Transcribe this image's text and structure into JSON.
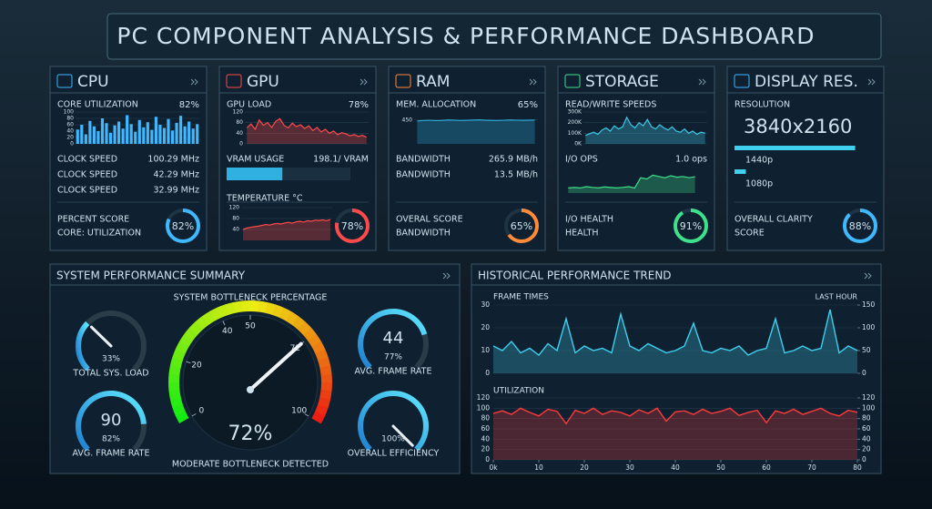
{
  "header": {
    "title": "PC COMPONENT ANALYSIS & PERFORMANCE DASHBOARD"
  },
  "cards": [
    {
      "title": "CPU",
      "label": "CORE UTILIZATION",
      "label_value": "82%",
      "value_color": "#5fe08a",
      "chart": {
        "kind": "bar",
        "color": "#3fb8ff",
        "ylim": [
          0,
          100
        ],
        "yticks": [
          0,
          20,
          40,
          60,
          80,
          100
        ],
        "values": [
          45,
          60,
          30,
          72,
          55,
          40,
          80,
          65,
          35,
          58,
          70,
          48,
          90,
          62,
          38,
          75,
          52,
          68,
          44,
          85,
          60,
          50,
          78,
          42,
          66,
          88,
          55,
          70,
          48,
          62
        ]
      },
      "rows": [
        [
          "CLOCK SPEED",
          "100.29 MHz"
        ],
        [
          "CLOCK SPEED",
          "42.29 MHz"
        ],
        [
          "CLOCK SPEED",
          "32.99 MHz"
        ]
      ],
      "score_lines": [
        "PERCENT SCORE",
        "CORE: UTILIZATION"
      ],
      "score": 82,
      "score_label": "82%",
      "ring_color": "#3fb8ff"
    },
    {
      "title": "GPU",
      "label": "GPU LOAD",
      "label_value": "78%",
      "value_color": "#ff5a5a",
      "chart": {
        "kind": "area",
        "color": "#ff4a4a",
        "ylim": [
          0,
          120
        ],
        "yticks": [
          0,
          40,
          80,
          120
        ],
        "values": [
          60,
          75,
          55,
          90,
          70,
          80,
          62,
          85,
          95,
          70,
          60,
          78,
          65,
          72,
          58,
          68,
          50,
          62,
          45,
          55,
          40,
          48,
          35,
          42,
          38,
          30,
          35,
          28,
          32,
          25
        ]
      },
      "progress": {
        "label": "VRAM USAGE",
        "value_text": "198.1/ VRAM",
        "fill": 45,
        "color": "#2fb0e0"
      },
      "chart2": {
        "label": "TEMPERATURE °C",
        "kind": "area",
        "color": "#ff4a4a",
        "ylim": [
          0,
          120
        ],
        "yticks": [
          40,
          80,
          120
        ],
        "values": [
          40,
          45,
          48,
          50,
          52,
          55,
          58,
          56,
          60,
          62,
          60,
          64,
          66,
          63,
          68,
          70,
          67,
          72,
          70,
          74,
          73,
          75,
          72,
          76
        ]
      },
      "score": 78,
      "score_label": "78%",
      "ring_color": "#ff4a4a"
    },
    {
      "title": "RAM",
      "label": "MEM. ALLOCATION",
      "label_value": "65%",
      "value_color": "#5fe08a",
      "chart": {
        "kind": "area",
        "color": "#2fa8d8",
        "ylim": [
          0,
          600
        ],
        "yticks": [
          450
        ],
        "values": [
          430,
          440,
          445,
          438,
          442,
          450,
          446,
          440,
          444,
          448,
          452,
          446,
          442,
          440,
          445,
          450,
          447,
          443,
          446,
          449
        ]
      },
      "rows": [
        [
          "BANDWIDTH",
          "265.9 MB/h"
        ],
        [
          "BANDWIDTH",
          "13.5 MB/h"
        ]
      ],
      "score_lines": [
        "OVERAL SCORE",
        "BANDWIDTH"
      ],
      "score": 65,
      "score_label": "65%",
      "ring_color": "#ff8a3a"
    },
    {
      "title": "STORAGE",
      "label": "READ/WRITE SPEEDS",
      "chart": {
        "kind": "area",
        "color": "#3fc8e8",
        "ylim": [
          0,
          300000
        ],
        "yticks": [
          {
            "value": 0,
            "label": "0K"
          },
          {
            "value": 100000,
            "label": "100K"
          },
          {
            "value": 200000,
            "label": "200K"
          },
          {
            "value": 300000,
            "label": "300K"
          }
        ],
        "values": [
          80000,
          95000,
          110000,
          90000,
          130000,
          150000,
          120000,
          170000,
          140000,
          160000,
          250000,
          180000,
          150000,
          200000,
          170000,
          230000,
          160000,
          140000,
          180000,
          150000,
          130000,
          160000,
          120000,
          110000,
          140000,
          100000,
          120000,
          90000,
          110000,
          100000
        ]
      },
      "rows": [
        [
          "I/O OPS",
          "1.0 ops"
        ]
      ],
      "chart2": {
        "kind": "area",
        "color": "#3fe08a",
        "ylim": [
          0,
          100
        ],
        "yticks": [],
        "values": [
          20,
          22,
          20,
          25,
          22,
          20,
          24,
          22,
          20,
          22,
          25,
          20,
          60,
          55,
          70,
          65,
          60,
          68,
          62,
          65,
          60,
          64
        ]
      },
      "score_lines": [
        "I/O HEALTH",
        "HEALTH"
      ],
      "score": 91,
      "score_label": "91%",
      "ring_color": "#3fe08a"
    },
    {
      "title": "DISPLAY RES.",
      "label": "RESOLUTION",
      "big_text": "3840x2160",
      "bars": [
        {
          "label": "1440p",
          "value": 85
        },
        {
          "label": "1080p",
          "value": 8
        }
      ],
      "score_lines": [
        "OVERALL CLARITY",
        "SCORE"
      ],
      "score": 88,
      "score_label": "88%",
      "ring_color": "#3fb8ff"
    }
  ],
  "summary": {
    "title": "SYSTEM PERFORMANCE SUMMARY",
    "main": {
      "title": "SYSTEM BOTTLENECK PERCENTAGE",
      "value": 72,
      "value_label": "72%",
      "ticks": [
        0,
        20,
        40,
        50,
        72,
        100
      ],
      "status": "MODERATE BOTTLENECK DETECTED"
    },
    "gauges": [
      {
        "label": "TOTAL SYS. LOAD",
        "value": 33,
        "value_label": "33%",
        "needle": true
      },
      {
        "label": "AVG. FRAME RATE",
        "main_text": "44",
        "value": 77,
        "value_label": "77%"
      },
      {
        "label": "AVG. FRAME RATE",
        "main_text": "90",
        "value": 82,
        "value_label": "82%"
      },
      {
        "label": "OVERALL EFFICIENCY",
        "value": 100,
        "value_label": "100%",
        "needle": true
      }
    ]
  },
  "trend": {
    "title": "HISTORICAL PERFORMANCE TREND",
    "xlim": [
      0,
      80
    ],
    "xticks": [
      {
        "value": 0,
        "label": "0k"
      },
      10,
      20,
      30,
      40,
      50,
      60,
      70,
      80
    ],
    "x": [
      0,
      2,
      4,
      6,
      8,
      10,
      12,
      14,
      16,
      18,
      20,
      22,
      24,
      26,
      28,
      30,
      32,
      34,
      36,
      38,
      40,
      42,
      44,
      46,
      48,
      50,
      52,
      54,
      56,
      58,
      60,
      62,
      64,
      66,
      68,
      70,
      72,
      74,
      76,
      78,
      80
    ],
    "charts": [
      {
        "label": "FRAME TIMES",
        "note": "LAST HOUR",
        "color": "#3fd0f0",
        "ylim": [
          0,
          30
        ],
        "yticks": [
          0,
          10,
          20,
          30
        ],
        "y2lim": [
          0,
          150
        ],
        "y2ticks": [
          0,
          50,
          100,
          150
        ],
        "values": [
          12,
          10,
          14,
          9,
          11,
          8,
          13,
          10,
          24,
          9,
          12,
          10,
          11,
          9,
          26,
          12,
          10,
          13,
          11,
          9,
          10,
          12,
          22,
          10,
          9,
          11,
          10,
          12,
          8,
          10,
          11,
          24,
          9,
          10,
          12,
          10,
          11,
          28,
          9,
          12,
          10
        ]
      },
      {
        "label": "UTILIZATION",
        "color": "#ff3a3a",
        "ylim": [
          0,
          120
        ],
        "yticks": [
          0,
          20,
          40,
          60,
          80,
          100,
          120
        ],
        "y2lim": [
          0,
          120
        ],
        "y2ticks": [
          0,
          20,
          40,
          60,
          80,
          100,
          120
        ],
        "values": [
          90,
          95,
          88,
          100,
          92,
          85,
          98,
          94,
          70,
          96,
          90,
          100,
          88,
          95,
          92,
          85,
          97,
          90,
          100,
          75,
          93,
          95,
          88,
          98,
          90,
          94,
          100,
          86,
          92,
          96,
          72,
          95,
          90,
          98,
          88,
          94,
          100,
          90,
          85,
          96,
          92
        ]
      }
    ]
  }
}
